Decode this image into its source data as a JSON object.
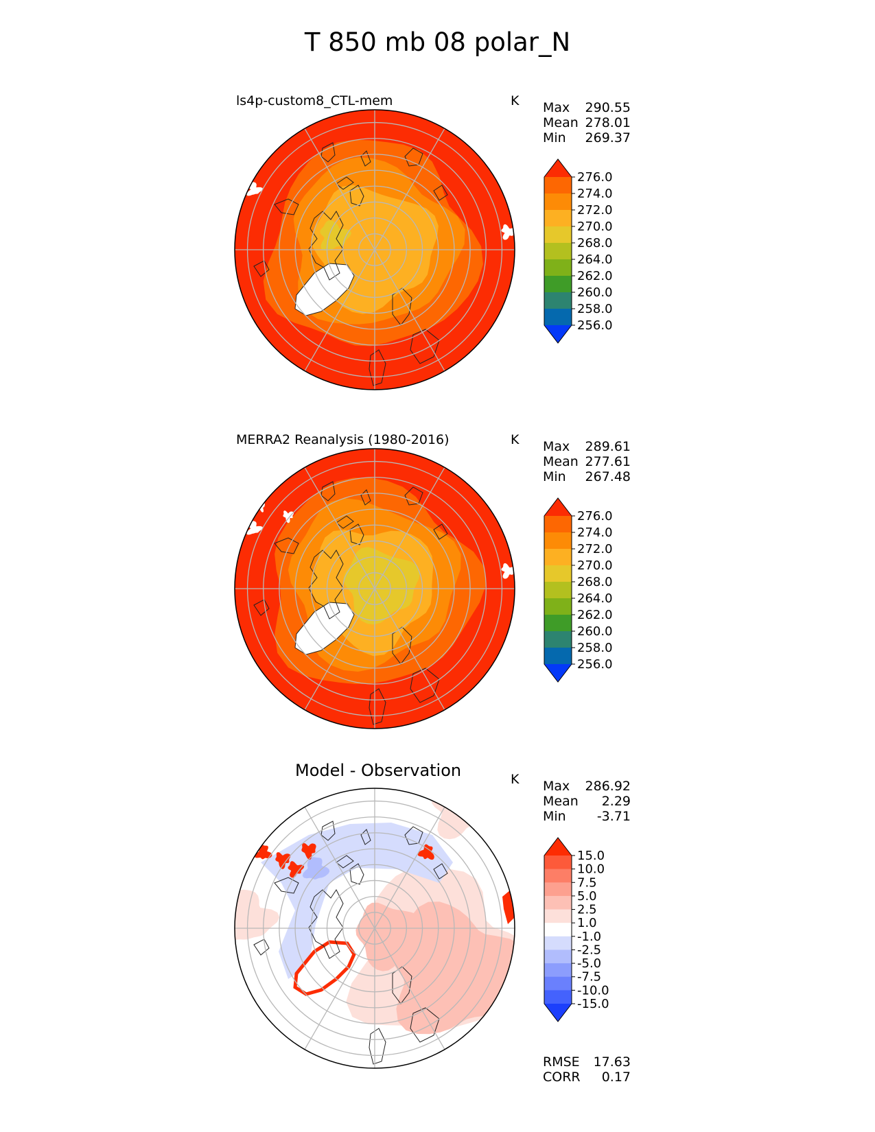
{
  "title": "T 850 mb 08 polar_N",
  "panels": [
    {
      "title": "ls4p-custom8_CTL-mem",
      "units": "K",
      "stats": {
        "max_label": "Max",
        "max": "290.55",
        "mean_label": "Mean",
        "mean": "278.01",
        "min_label": "Min",
        "min": "269.37"
      }
    },
    {
      "title": "MERRA2 Reanalysis (1980-2016)",
      "units": "K",
      "stats": {
        "max_label": "Max",
        "max": "289.61",
        "mean_label": "Mean",
        "mean": "277.61",
        "min_label": "Min",
        "min": "267.48"
      }
    },
    {
      "title": "Model - Observation",
      "units": "K",
      "stats": {
        "max_label": "Max",
        "max": "286.92",
        "mean_label": "Mean",
        "mean": "2.29",
        "min_label": "Min",
        "min": "-3.71"
      },
      "rmse_label": "RMSE",
      "rmse": "17.63",
      "corr_label": "CORR",
      "corr": "0.17"
    }
  ],
  "chart_data": [
    {
      "type": "heatmap",
      "projection": "north polar stereographic",
      "title": "ls4p-custom8_CTL-mem",
      "units": "K",
      "colorbar": {
        "ticks": [
          "276.0",
          "274.0",
          "272.0",
          "270.0",
          "268.0",
          "264.0",
          "262.0",
          "260.0",
          "258.0",
          "256.0"
        ],
        "colors": [
          "#fc2c03",
          "#fd6702",
          "#fd8b06",
          "#fdb022",
          "#e6c82b",
          "#b3c01f",
          "#7fb119",
          "#3f9c28",
          "#2d8470",
          "#0569ae",
          "#0439f8"
        ],
        "extend": "both"
      },
      "stats": {
        "max": 290.55,
        "mean": 278.01,
        "min": 269.37
      }
    },
    {
      "type": "heatmap",
      "projection": "north polar stereographic",
      "title": "MERRA2 Reanalysis (1980-2016)",
      "units": "K",
      "colorbar": {
        "ticks": [
          "276.0",
          "274.0",
          "272.0",
          "270.0",
          "268.0",
          "264.0",
          "262.0",
          "260.0",
          "258.0",
          "256.0"
        ],
        "colors": [
          "#fc2c03",
          "#fd6702",
          "#fd8b06",
          "#fdb022",
          "#e6c82b",
          "#b3c01f",
          "#7fb119",
          "#3f9c28",
          "#2d8470",
          "#0569ae",
          "#0439f8"
        ],
        "extend": "both"
      },
      "stats": {
        "max": 289.61,
        "mean": 277.61,
        "min": 267.48
      }
    },
    {
      "type": "heatmap",
      "projection": "north polar stereographic",
      "title": "Model - Observation",
      "units": "K",
      "colorbar": {
        "ticks": [
          "15.0",
          "10.0",
          "7.5",
          "5.0",
          "2.5",
          "1.0",
          "-1.0",
          "-2.5",
          "-5.0",
          "-7.5",
          "-10.0",
          "-15.0"
        ],
        "colors": [
          "#fd2c03",
          "#fd5a3a",
          "#fd7e66",
          "#fda08f",
          "#fdc0b5",
          "#fde0da",
          "#ffffff",
          "#d5dcfd",
          "#b1bdfd",
          "#8c9dfd",
          "#6a80fd",
          "#4462fd",
          "#1c3ffc"
        ],
        "extend": "both"
      },
      "stats": {
        "max": 286.92,
        "mean": 2.29,
        "min": -3.71
      },
      "rmse": 17.63,
      "corr": 0.17
    }
  ]
}
